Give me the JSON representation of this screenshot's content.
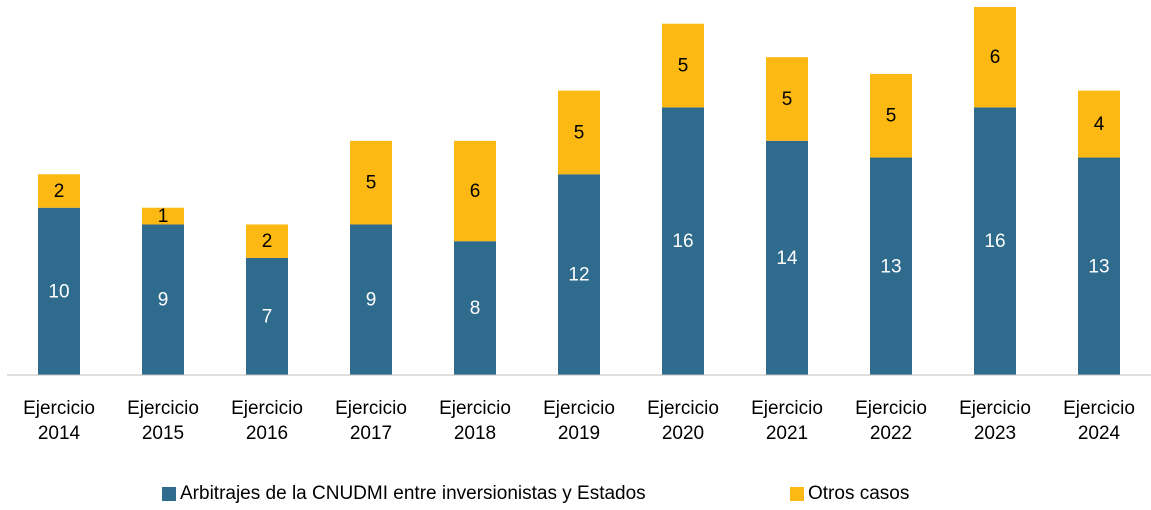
{
  "chart_data": {
    "type": "stacked_bar",
    "categories": [
      "Ejercicio 2014",
      "Ejercicio 2015",
      "Ejercicio 2016",
      "Ejercicio 2017",
      "Ejercicio 2018",
      "Ejercicio 2019",
      "Ejercicio 2020",
      "Ejercicio 2021",
      "Ejercicio 2022",
      "Ejercicio 2023",
      "Ejercicio 2024"
    ],
    "series": [
      {
        "name": "Arbitrajes de la CNUDMI entre inversionistas y Estados",
        "color": "#2e6b8c",
        "label_color": "#ffffff",
        "values": [
          10,
          9,
          7,
          9,
          8,
          12,
          16,
          14,
          13,
          16,
          13
        ]
      },
      {
        "name": "Otros casos",
        "color": "#fcb813",
        "label_color": "#000000",
        "values": [
          2,
          1,
          2,
          5,
          6,
          5,
          5,
          5,
          5,
          6,
          4
        ]
      }
    ],
    "ylim": [
      0,
      22
    ],
    "legend": "bottom"
  }
}
